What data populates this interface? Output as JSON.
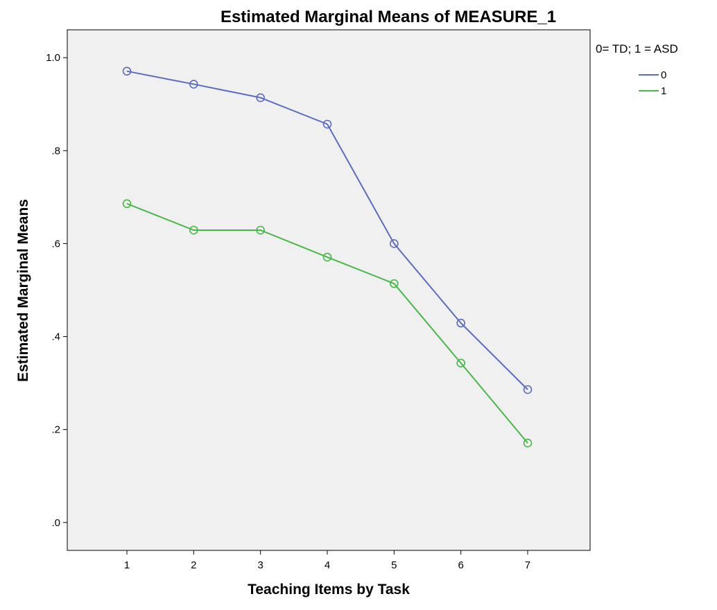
{
  "chart_data": {
    "type": "line",
    "title": "Estimated Marginal Means of MEASURE_1",
    "xlabel": "Teaching Items by Task",
    "ylabel": "Estimated Marginal Means",
    "categories": [
      "1",
      "2",
      "3",
      "4",
      "5",
      "6",
      "7"
    ],
    "y_ticks": [
      ".0",
      ".2",
      ".4",
      ".6",
      ".8",
      "1.0"
    ],
    "ylim": [
      -0.06,
      1.06
    ],
    "grid": false,
    "legend": {
      "title": "0= TD; 1 = ASD",
      "placement": "top-right outside"
    },
    "series": [
      {
        "name": "0",
        "color": "#5b6bbf",
        "values": [
          0.971,
          0.943,
          0.914,
          0.857,
          0.6,
          0.429,
          0.286
        ]
      },
      {
        "name": "1",
        "color": "#46b846",
        "values": [
          0.686,
          0.629,
          0.629,
          0.571,
          0.514,
          0.343,
          0.171
        ]
      }
    ],
    "plot_background": "#f0f0f0"
  }
}
